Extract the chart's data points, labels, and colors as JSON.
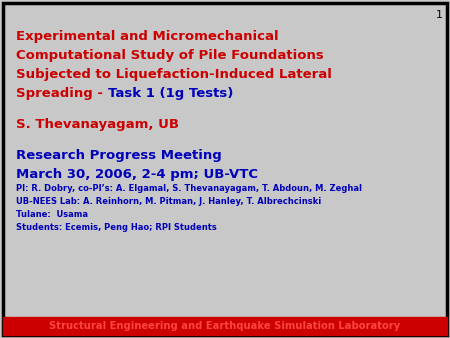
{
  "background_color": "#c8c8c8",
  "border_color": "#000000",
  "bottom_bar_color": "#cc0000",
  "bottom_bar_text": "Structural Engineering and Earthquake Simulation Laboratory",
  "bottom_bar_text_color": "#ff4444",
  "slide_number": "1",
  "slide_number_color": "#000000",
  "title_lines_red": [
    "Experimental and Micromechanical",
    "Computational Study of Pile Foundations",
    "Subjected to Liquefaction-Induced Lateral"
  ],
  "title_line4_normal": "Spreading - ",
  "title_line4_bold_blue": "Task 1 (1g Tests)",
  "title_color": "#cc0000",
  "title_blue_color": "#0000bb",
  "author": "S. Thevanayagam, UB",
  "author_color": "#cc0000",
  "meeting_line1": "Research Progress Meeting",
  "meeting_line2": "March 30, 2006, 2-4 pm; UB-VTC",
  "meeting_color": "#0000bb",
  "details_line1": "PI: R. Dobry, co-PI’s: A. Elgamal, S. Thevanayagam, T. Abdoun, M. Zeghal",
  "details_line2": "UB-NEES Lab: A. Reinhorn, M. Pitman, J. Hanley, T. Albrechcinski",
  "details_line3": "Tulane:  Usama",
  "details_line4": "Students: Ecemis, Peng Hao; RPI Students",
  "details_color": "#0000bb",
  "figsize": [
    4.5,
    3.38
  ],
  "dpi": 100
}
